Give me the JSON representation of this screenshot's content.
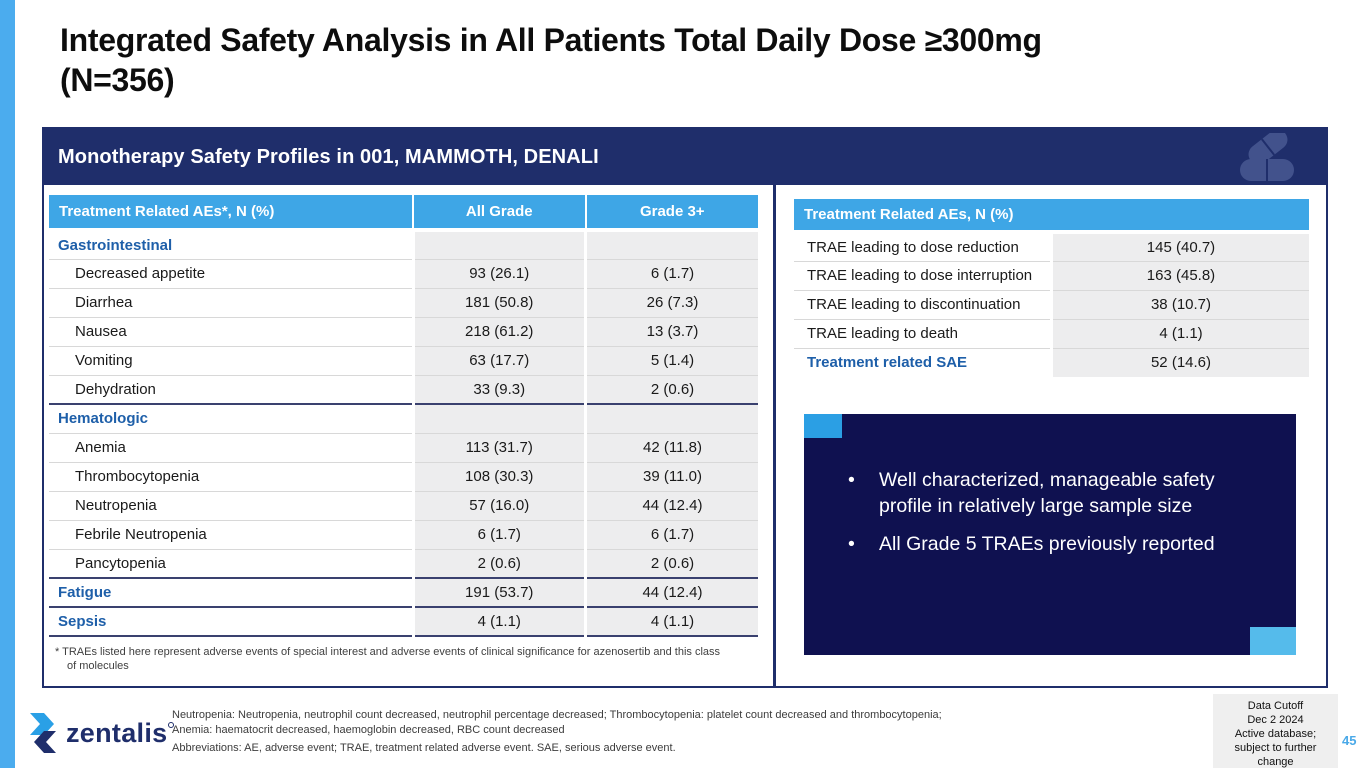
{
  "slide": {
    "title_line1": "Integrated Safety Analysis in All Patients Total Daily Dose ≥300mg",
    "title_line2": "(N=356)",
    "band_title": "Monotherapy Safety Profiles in 001, MAMMOTH, DENALI",
    "page_number": "45"
  },
  "colors": {
    "sky_blue_accent": "#3ea6e6",
    "navy_brand": "#1f2e6b",
    "callout_navy": "#0f1150",
    "section_label_blue": "#1e5fa9",
    "page_number_blue": "#4aa9e8"
  },
  "left_table": {
    "headers": [
      "Treatment Related AEs*, N (%)",
      "All Grade",
      "Grade 3+"
    ],
    "rows": [
      {
        "label": "Gastrointestinal",
        "type": "section",
        "all_grade": "",
        "grade3": ""
      },
      {
        "label": "Decreased appetite",
        "type": "item",
        "all_grade": "93 (26.1)",
        "grade3": "6 (1.7)"
      },
      {
        "label": "Diarrhea",
        "type": "item",
        "all_grade": "181 (50.8)",
        "grade3": "26 (7.3)"
      },
      {
        "label": "Nausea",
        "type": "item",
        "all_grade": "218 (61.2)",
        "grade3": "13 (3.7)"
      },
      {
        "label": "Vomiting",
        "type": "item",
        "all_grade": "63 (17.7)",
        "grade3": "5 (1.4)"
      },
      {
        "label": "Dehydration",
        "type": "item",
        "all_grade": "33 (9.3)",
        "grade3": "2 (0.6)"
      },
      {
        "label": "Hematologic",
        "type": "section",
        "all_grade": "",
        "grade3": ""
      },
      {
        "label": "Anemia",
        "type": "item",
        "all_grade": "113 (31.7)",
        "grade3": "42 (11.8)"
      },
      {
        "label": "Thrombocytopenia",
        "type": "item",
        "all_grade": "108 (30.3)",
        "grade3": "39 (11.0)"
      },
      {
        "label": "Neutropenia",
        "type": "item",
        "all_grade": "57 (16.0)",
        "grade3": "44 (12.4)"
      },
      {
        "label": "Febrile Neutropenia",
        "type": "item",
        "all_grade": "6 (1.7)",
        "grade3": "6 (1.7)"
      },
      {
        "label": "Pancytopenia",
        "type": "item",
        "all_grade": "2 (0.6)",
        "grade3": "2 (0.6)"
      },
      {
        "label": "Fatigue",
        "type": "section",
        "all_grade": "191 (53.7)",
        "grade3": "44 (12.4)"
      },
      {
        "label": "Sepsis",
        "type": "section",
        "all_grade": "4 (1.1)",
        "grade3": "4 (1.1)"
      }
    ],
    "footnote_marker": "*",
    "footnote": "TRAEs listed here represent adverse events of special interest and adverse events of clinical significance for azenosertib and this class of molecules"
  },
  "right_table": {
    "header": "Treatment Related AEs, N (%)",
    "rows": [
      {
        "label": "TRAE leading to dose reduction",
        "type": "item",
        "value": "145 (40.7)"
      },
      {
        "label": "TRAE leading to dose interruption",
        "type": "item",
        "value": "163 (45.8)"
      },
      {
        "label": "TRAE leading to discontinuation",
        "type": "item",
        "value": "38 (10.7)"
      },
      {
        "label": "TRAE leading to death",
        "type": "item",
        "value": "4 (1.1)"
      },
      {
        "label": "Treatment related SAE",
        "type": "section",
        "value": "52 (14.6)"
      }
    ]
  },
  "callout": {
    "bullets": [
      "Well characterized, manageable safety profile in relatively large sample size",
      "All Grade 5 TRAEs previously reported"
    ]
  },
  "footer": {
    "logo_text": "zentalis",
    "notes": [
      "Neutropenia: Neutropenia, neutrophil count decreased, neutrophil percentage decreased; Thrombocytopenia: platelet count decreased and thrombocytopenia;",
      "Anemia: haematocrit decreased, haemoglobin decreased, RBC count decreased",
      "Abbreviations: AE, adverse event; TRAE, treatment related adverse event. SAE, serious adverse event."
    ],
    "data_cutoff_lines": [
      "Data Cutoff",
      "Dec 2 2024",
      "Active database;",
      "subject to further change"
    ]
  }
}
